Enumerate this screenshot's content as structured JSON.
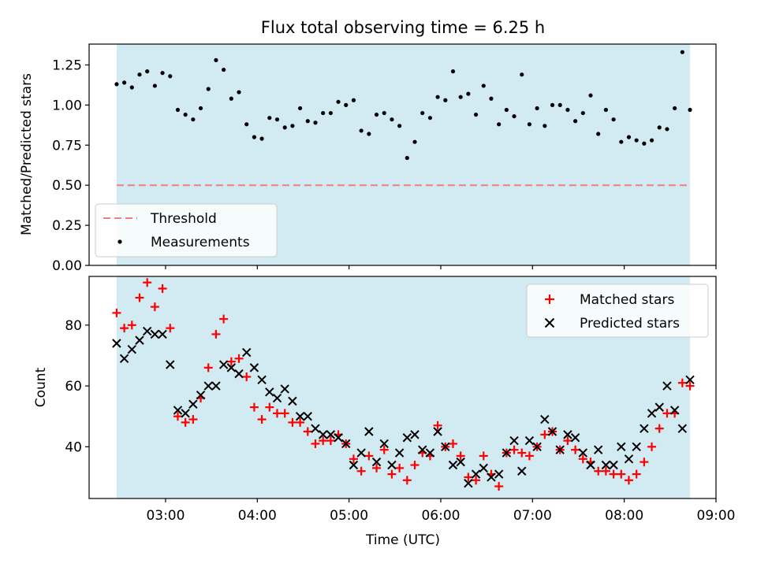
{
  "title": "Flux total observing time = 6.25 h",
  "xlabel": "Time (UTC)",
  "xticks": [
    "03:00",
    "04:00",
    "05:00",
    "06:00",
    "07:00",
    "08:00",
    "09:00"
  ],
  "colors": {
    "shade": "#add8e6",
    "threshold": "#f08080",
    "matched": "#ff0000",
    "predicted": "#000000",
    "measure": "#000000"
  },
  "chart_data": [
    {
      "type": "scatter",
      "ylabel": "Matched/Predicted stars",
      "xlim": [
        "02:10",
        "09:00"
      ],
      "ylim": [
        0,
        1.38
      ],
      "yticks": [
        "0.00",
        "0.25",
        "0.50",
        "0.75",
        "1.00",
        "1.25"
      ],
      "shaded_span": [
        "02:28",
        "08:43"
      ],
      "threshold": 0.5,
      "legend": {
        "position": "lower-left",
        "entries": [
          "Threshold",
          "Measurements"
        ]
      },
      "series": [
        {
          "name": "Measurements",
          "x": [
            "02:28",
            "02:33",
            "02:38",
            "02:43",
            "02:48",
            "02:53",
            "02:58",
            "03:03",
            "03:08",
            "03:13",
            "03:18",
            "03:23",
            "03:28",
            "03:33",
            "03:38",
            "03:43",
            "03:48",
            "03:53",
            "03:58",
            "04:03",
            "04:08",
            "04:13",
            "04:18",
            "04:23",
            "04:28",
            "04:33",
            "04:38",
            "04:43",
            "04:48",
            "04:53",
            "04:58",
            "05:03",
            "05:08",
            "05:13",
            "05:18",
            "05:23",
            "05:28",
            "05:33",
            "05:38",
            "05:43",
            "05:48",
            "05:53",
            "05:58",
            "06:03",
            "06:08",
            "06:13",
            "06:18",
            "06:23",
            "06:28",
            "06:33",
            "06:38",
            "06:43",
            "06:48",
            "06:53",
            "06:58",
            "07:03",
            "07:08",
            "07:13",
            "07:18",
            "07:23",
            "07:28",
            "07:33",
            "07:38",
            "07:43",
            "07:48",
            "07:53",
            "07:58",
            "08:03",
            "08:08",
            "08:13",
            "08:18",
            "08:23",
            "08:28",
            "08:33",
            "08:38",
            "08:43"
          ],
          "y": [
            1.13,
            1.14,
            1.11,
            1.19,
            1.21,
            1.12,
            1.2,
            1.18,
            0.97,
            0.94,
            0.91,
            0.98,
            1.1,
            1.28,
            1.22,
            1.04,
            1.08,
            0.88,
            0.8,
            0.79,
            0.92,
            0.91,
            0.86,
            0.87,
            0.98,
            0.9,
            0.89,
            0.95,
            0.95,
            1.02,
            1.0,
            1.03,
            0.84,
            0.82,
            0.94,
            0.95,
            0.91,
            0.87,
            0.67,
            0.77,
            0.95,
            0.92,
            1.05,
            1.03,
            1.21,
            1.05,
            1.07,
            0.94,
            1.12,
            1.04,
            0.88,
            0.97,
            0.93,
            1.19,
            0.88,
            0.98,
            0.87,
            1.0,
            1.0,
            0.97,
            0.9,
            0.95,
            1.06,
            0.82,
            0.97,
            0.91,
            0.77,
            0.8,
            0.78,
            0.76,
            0.78,
            0.86,
            0.85,
            0.98,
            1.33,
            0.97
          ]
        }
      ]
    },
    {
      "type": "scatter",
      "ylabel": "Count",
      "xlim": [
        "02:10",
        "09:00"
      ],
      "ylim": [
        23,
        96
      ],
      "yticks": [
        "40",
        "60",
        "80"
      ],
      "shaded_span": [
        "02:28",
        "08:43"
      ],
      "legend": {
        "position": "upper-right",
        "entries": [
          "Matched stars",
          "Predicted stars"
        ]
      },
      "series": [
        {
          "name": "Matched stars",
          "x": [
            "02:28",
            "02:33",
            "02:38",
            "02:43",
            "02:48",
            "02:53",
            "02:58",
            "03:03",
            "03:08",
            "03:13",
            "03:18",
            "03:23",
            "03:28",
            "03:33",
            "03:38",
            "03:43",
            "03:48",
            "03:53",
            "03:58",
            "04:03",
            "04:08",
            "04:13",
            "04:18",
            "04:23",
            "04:28",
            "04:33",
            "04:38",
            "04:43",
            "04:48",
            "04:53",
            "04:58",
            "05:03",
            "05:08",
            "05:13",
            "05:18",
            "05:23",
            "05:28",
            "05:33",
            "05:38",
            "05:43",
            "05:48",
            "05:53",
            "05:58",
            "06:03",
            "06:08",
            "06:13",
            "06:18",
            "06:23",
            "06:28",
            "06:33",
            "06:38",
            "06:43",
            "06:48",
            "06:53",
            "06:58",
            "07:03",
            "07:08",
            "07:13",
            "07:18",
            "07:23",
            "07:28",
            "07:33",
            "07:38",
            "07:43",
            "07:48",
            "07:53",
            "07:58",
            "08:03",
            "08:08",
            "08:13",
            "08:18",
            "08:23",
            "08:28",
            "08:33",
            "08:38",
            "08:43"
          ],
          "y": [
            84,
            79,
            80,
            89,
            94,
            86,
            92,
            79,
            50,
            48,
            49,
            56,
            66,
            77,
            82,
            68,
            69,
            63,
            53,
            49,
            53,
            51,
            51,
            48,
            48,
            45,
            41,
            42,
            42,
            44,
            41,
            36,
            32,
            37,
            33,
            39,
            31,
            33,
            29,
            34,
            38,
            37,
            47,
            40,
            41,
            37,
            30,
            29,
            37,
            31,
            27,
            38,
            39,
            38,
            37,
            40,
            44,
            45,
            39,
            42,
            39,
            36,
            35,
            32,
            32,
            31,
            31,
            29,
            31,
            35,
            40,
            46,
            51,
            51,
            61,
            60
          ]
        },
        {
          "name": "Predicted stars",
          "x": [
            "02:28",
            "02:33",
            "02:38",
            "02:43",
            "02:48",
            "02:53",
            "02:58",
            "03:03",
            "03:08",
            "03:13",
            "03:18",
            "03:23",
            "03:28",
            "03:33",
            "03:38",
            "03:43",
            "03:48",
            "03:53",
            "03:58",
            "04:03",
            "04:08",
            "04:13",
            "04:18",
            "04:23",
            "04:28",
            "04:33",
            "04:38",
            "04:43",
            "04:48",
            "04:53",
            "04:58",
            "05:03",
            "05:08",
            "05:13",
            "05:18",
            "05:23",
            "05:28",
            "05:33",
            "05:38",
            "05:43",
            "05:48",
            "05:53",
            "05:58",
            "06:03",
            "06:08",
            "06:13",
            "06:18",
            "06:23",
            "06:28",
            "06:33",
            "06:38",
            "06:43",
            "06:48",
            "06:53",
            "06:58",
            "07:03",
            "07:08",
            "07:13",
            "07:18",
            "07:23",
            "07:28",
            "07:33",
            "07:38",
            "07:43",
            "07:48",
            "07:53",
            "07:58",
            "08:03",
            "08:08",
            "08:13",
            "08:18",
            "08:23",
            "08:28",
            "08:33",
            "08:38",
            "08:43"
          ],
          "y": [
            74,
            69,
            72,
            75,
            78,
            77,
            77,
            67,
            52,
            51,
            54,
            57,
            60,
            60,
            67,
            66,
            64,
            71,
            66,
            62,
            58,
            56,
            59,
            55,
            50,
            50,
            46,
            44,
            44,
            43,
            41,
            34,
            38,
            45,
            35,
            41,
            34,
            38,
            43,
            44,
            39,
            38,
            45,
            40,
            34,
            35,
            28,
            31,
            33,
            30,
            31,
            38,
            42,
            32,
            42,
            40,
            49,
            45,
            39,
            44,
            43,
            38,
            34,
            39,
            34,
            34,
            40,
            36,
            40,
            46,
            51,
            53,
            60,
            52,
            46,
            62
          ]
        }
      ]
    }
  ]
}
